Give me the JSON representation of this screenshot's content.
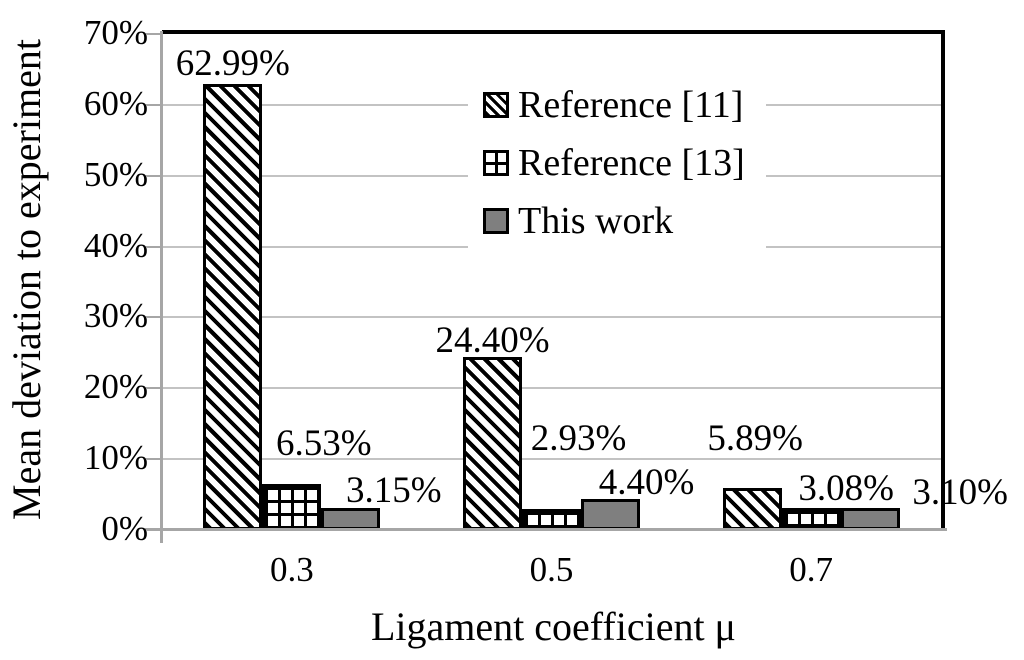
{
  "chart_data": {
    "type": "bar",
    "title": "",
    "xlabel": "Ligament coefficient μ",
    "ylabel": "Mean deviation to experiment",
    "categories": [
      "0.3",
      "0.5",
      "0.7"
    ],
    "series": [
      {
        "name": "Reference [11]",
        "pattern": "diagonal-hatch",
        "values": [
          62.99,
          24.4,
          5.89
        ],
        "labels": [
          "62.99%",
          "24.40%",
          "5.89%"
        ]
      },
      {
        "name": "Reference [13]",
        "pattern": "grid-hatch",
        "values": [
          6.53,
          2.93,
          3.08
        ],
        "labels": [
          "6.53%",
          "2.93%",
          "3.08%"
        ]
      },
      {
        "name": "This work",
        "pattern": "solid-gray",
        "values": [
          3.15,
          4.4,
          3.1
        ],
        "labels": [
          "3.15%",
          "4.40%",
          "3.10%"
        ]
      }
    ],
    "ylim": [
      0,
      70
    ],
    "ytick_step": 10,
    "ytick_labels": [
      "0%",
      "10%",
      "20%",
      "30%",
      "40%",
      "50%",
      "60%",
      "70%"
    ],
    "grid": true,
    "legend_position": "upper-right-inside"
  },
  "colors": {
    "bar_solid": "#7f7f7f",
    "pattern_ink": "#000000",
    "gridline": "#c3c3c3",
    "axis_line": "#a6a6a6",
    "plot_border": "#000000",
    "background": "#ffffff",
    "text": "#000000"
  }
}
